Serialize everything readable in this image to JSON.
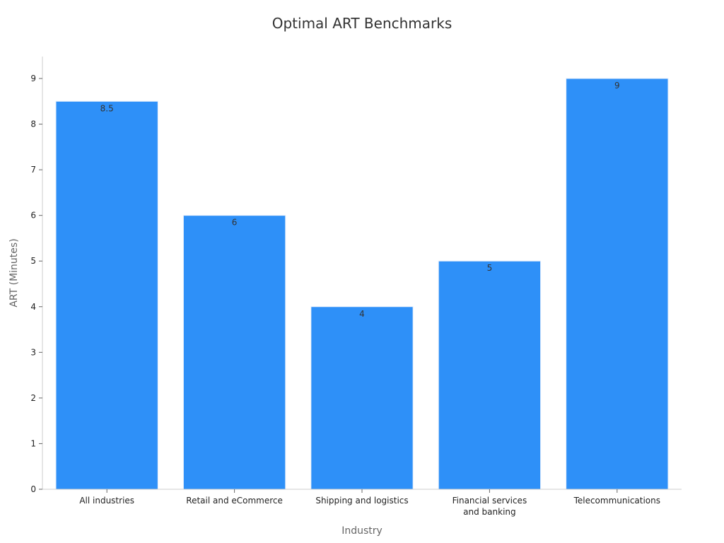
{
  "chart_data": {
    "type": "bar",
    "title": "Optimal ART Benchmarks",
    "xlabel": "Industry",
    "ylabel": "ART (Minutes)",
    "categories": [
      [
        "All industries"
      ],
      [
        "Retail and eCommerce"
      ],
      [
        "Shipping and logistics"
      ],
      [
        "Financial services",
        "and banking"
      ],
      [
        "Telecommunications"
      ]
    ],
    "values": [
      8.5,
      6,
      4,
      5,
      9
    ],
    "value_labels": [
      "8.5",
      "6",
      "4",
      "5",
      "9"
    ],
    "ylim": [
      0,
      9
    ],
    "yticks": [
      0,
      1,
      2,
      3,
      4,
      5,
      6,
      7,
      8,
      9
    ],
    "grid": false,
    "legend": "none",
    "bar_color": "#2e90f8",
    "bar_edge_color": "#e4eefb"
  }
}
